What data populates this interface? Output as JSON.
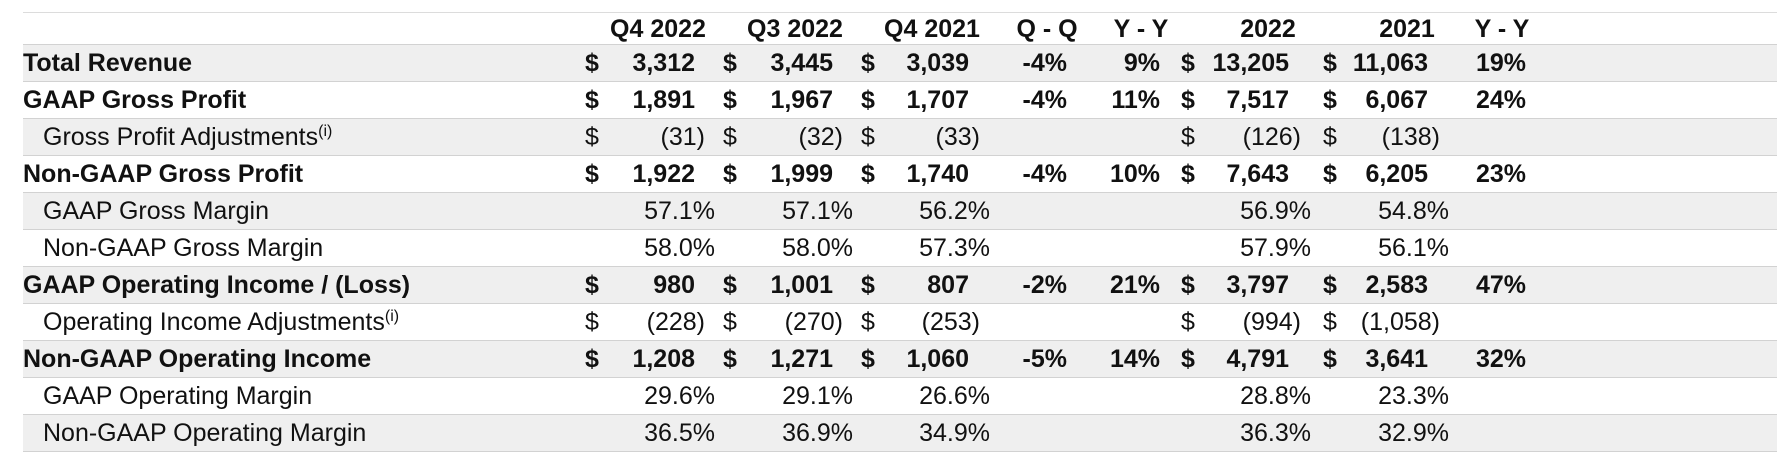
{
  "columns": [
    "Q4 2022",
    "Q3 2022",
    "Q4 2021",
    "Q - Q",
    "Y - Y",
    "2022",
    "2021",
    "Y - Y"
  ],
  "rows": [
    {
      "label": "Total Revenue",
      "sup": "",
      "style": "bold",
      "cells": [
        {
          "cur": "$",
          "val": "3,312"
        },
        {
          "cur": "$",
          "val": "3,445"
        },
        {
          "cur": "$",
          "val": "3,039"
        },
        {
          "val": "-4%"
        },
        {
          "val": "9%"
        },
        {
          "cur": "$",
          "val": "13,205"
        },
        {
          "cur": "$",
          "val": "11,063"
        },
        {
          "val": "19%"
        }
      ]
    },
    {
      "label": "GAAP Gross Profit",
      "sup": "",
      "style": "bold",
      "cells": [
        {
          "cur": "$",
          "val": "1,891"
        },
        {
          "cur": "$",
          "val": "1,967"
        },
        {
          "cur": "$",
          "val": "1,707"
        },
        {
          "val": "-4%"
        },
        {
          "val": "11%"
        },
        {
          "cur": "$",
          "val": "7,517"
        },
        {
          "cur": "$",
          "val": "6,067"
        },
        {
          "val": "24%"
        }
      ]
    },
    {
      "label": "Gross Profit Adjustments",
      "sup": "(i)",
      "style": "sub",
      "cells": [
        {
          "cur": "$",
          "val": "(31)"
        },
        {
          "cur": "$",
          "val": "(32)"
        },
        {
          "cur": "$",
          "val": "(33)"
        },
        {
          "val": ""
        },
        {
          "val": ""
        },
        {
          "cur": "$",
          "val": "(126)"
        },
        {
          "cur": "$",
          "val": "(138)"
        },
        {
          "val": ""
        }
      ]
    },
    {
      "label": "Non-GAAP Gross Profit",
      "sup": "",
      "style": "bold",
      "cells": [
        {
          "cur": "$",
          "val": "1,922"
        },
        {
          "cur": "$",
          "val": "1,999"
        },
        {
          "cur": "$",
          "val": "1,740"
        },
        {
          "val": "-4%"
        },
        {
          "val": "10%"
        },
        {
          "cur": "$",
          "val": "7,643"
        },
        {
          "cur": "$",
          "val": "6,205"
        },
        {
          "val": "23%"
        }
      ]
    },
    {
      "label": "GAAP Gross Margin",
      "sup": "",
      "style": "sub",
      "cells": [
        {
          "val": "57.1%"
        },
        {
          "val": "57.1%"
        },
        {
          "val": "56.2%"
        },
        {
          "val": ""
        },
        {
          "val": ""
        },
        {
          "val": "56.9%"
        },
        {
          "val": "54.8%"
        },
        {
          "val": ""
        }
      ]
    },
    {
      "label": "Non-GAAP Gross Margin",
      "sup": "",
      "style": "sub",
      "cells": [
        {
          "val": "58.0%"
        },
        {
          "val": "58.0%"
        },
        {
          "val": "57.3%"
        },
        {
          "val": ""
        },
        {
          "val": ""
        },
        {
          "val": "57.9%"
        },
        {
          "val": "56.1%"
        },
        {
          "val": ""
        }
      ]
    },
    {
      "label": "GAAP Operating Income / (Loss)",
      "sup": "",
      "style": "bold",
      "cells": [
        {
          "cur": "$",
          "val": "980"
        },
        {
          "cur": "$",
          "val": "1,001"
        },
        {
          "cur": "$",
          "val": "807"
        },
        {
          "val": "-2%"
        },
        {
          "val": "21%"
        },
        {
          "cur": "$",
          "val": "3,797"
        },
        {
          "cur": "$",
          "val": "2,583"
        },
        {
          "val": "47%"
        }
      ]
    },
    {
      "label": "Operating Income Adjustments",
      "sup": "(i)",
      "style": "sub",
      "cells": [
        {
          "cur": "$",
          "val": "(228)"
        },
        {
          "cur": "$",
          "val": "(270)"
        },
        {
          "cur": "$",
          "val": "(253)"
        },
        {
          "val": ""
        },
        {
          "val": ""
        },
        {
          "cur": "$",
          "val": "(994)"
        },
        {
          "cur": "$",
          "val": "(1,058)"
        },
        {
          "val": ""
        }
      ]
    },
    {
      "label": "Non-GAAP Operating Income",
      "sup": "",
      "style": "bold",
      "cells": [
        {
          "cur": "$",
          "val": "1,208"
        },
        {
          "cur": "$",
          "val": "1,271"
        },
        {
          "cur": "$",
          "val": "1,060"
        },
        {
          "val": "-5%"
        },
        {
          "val": "14%"
        },
        {
          "cur": "$",
          "val": "4,791"
        },
        {
          "cur": "$",
          "val": "3,641"
        },
        {
          "val": "32%"
        }
      ]
    },
    {
      "label": "GAAP Operating Margin",
      "sup": "",
      "style": "sub",
      "cells": [
        {
          "val": "29.6%"
        },
        {
          "val": "29.1%"
        },
        {
          "val": "26.6%"
        },
        {
          "val": ""
        },
        {
          "val": ""
        },
        {
          "val": "28.8%"
        },
        {
          "val": "23.3%"
        },
        {
          "val": ""
        }
      ]
    },
    {
      "label": "Non-GAAP Operating Margin",
      "sup": "",
      "style": "sub",
      "cells": [
        {
          "val": "36.5%"
        },
        {
          "val": "36.9%"
        },
        {
          "val": "34.9%"
        },
        {
          "val": ""
        },
        {
          "val": ""
        },
        {
          "val": "36.3%"
        },
        {
          "val": "32.9%"
        },
        {
          "val": ""
        }
      ]
    }
  ]
}
